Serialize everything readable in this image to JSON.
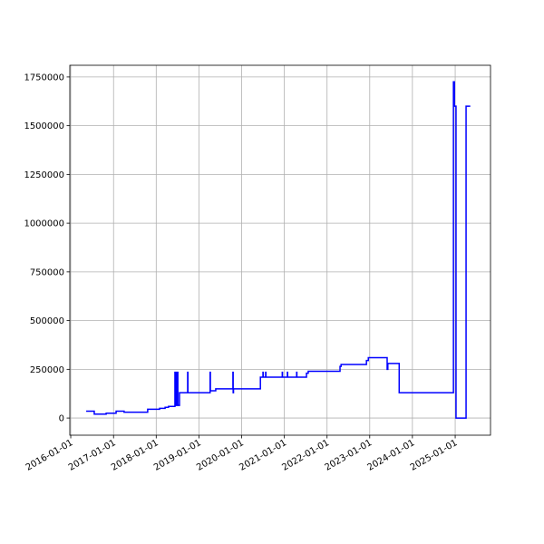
{
  "chart_data": {
    "type": "line",
    "color": "#0000ff",
    "grid": true,
    "x": [
      "2016-05-12",
      "2016-07-20",
      "2016-07-20",
      "2016-10-30",
      "2016-10-30",
      "2017-01-23",
      "2017-01-23",
      "2017-04-01",
      "2017-04-01",
      "2017-10-20",
      "2017-10-20",
      "2018-01-30",
      "2018-01-30",
      "2018-03-18",
      "2018-03-18",
      "2018-04-16",
      "2018-04-16",
      "2018-06-10",
      "2018-06-10",
      "2018-06-14",
      "2018-06-14",
      "2018-06-20",
      "2018-06-20",
      "2018-06-24",
      "2018-06-24",
      "2018-07-01",
      "2018-07-01",
      "2018-07-05",
      "2018-07-05",
      "2018-07-19",
      "2018-07-19",
      "2018-09-27",
      "2018-09-27",
      "2018-09-29",
      "2018-09-29",
      "2019-04-07",
      "2019-04-07",
      "2019-04-09",
      "2019-04-09",
      "2019-05-25",
      "2019-05-25",
      "2019-10-19",
      "2019-10-19",
      "2019-10-21",
      "2019-10-21",
      "2019-10-24",
      "2019-10-24",
      "2020-06-10",
      "2020-06-10",
      "2020-07-02",
      "2020-07-02",
      "2020-07-04",
      "2020-07-04",
      "2020-07-25",
      "2020-07-25",
      "2020-07-27",
      "2020-07-27",
      "2020-12-14",
      "2020-12-14",
      "2020-12-16",
      "2020-12-16",
      "2021-01-27",
      "2021-01-27",
      "2021-01-29",
      "2021-01-29",
      "2021-04-16",
      "2021-04-16",
      "2021-04-18",
      "2021-04-18",
      "2021-07-09",
      "2021-07-09",
      "2021-07-24",
      "2021-07-24",
      "2022-04-22",
      "2022-04-22",
      "2022-05-01",
      "2022-05-01",
      "2022-12-04",
      "2022-12-04",
      "2022-12-20",
      "2022-12-20",
      "2023-05-30",
      "2023-05-30",
      "2023-06-05",
      "2023-06-05",
      "2023-09-10",
      "2023-09-10",
      "2024-12-17",
      "2024-12-17",
      "2024-12-25",
      "2024-12-25",
      "2025-01-08",
      "2025-01-08",
      "2025-04-04",
      "2025-04-04",
      "2025-05-10"
    ],
    "values": [
      35000,
      35000,
      20000,
      20000,
      25000,
      25000,
      35000,
      35000,
      30000,
      30000,
      45000,
      45000,
      50000,
      50000,
      55000,
      55000,
      60000,
      60000,
      235000,
      235000,
      65000,
      65000,
      235000,
      235000,
      65000,
      65000,
      235000,
      235000,
      65000,
      65000,
      130000,
      130000,
      235000,
      235000,
      130000,
      130000,
      235000,
      235000,
      140000,
      140000,
      150000,
      150000,
      235000,
      235000,
      130000,
      130000,
      150000,
      150000,
      210000,
      210000,
      235000,
      235000,
      210000,
      210000,
      235000,
      235000,
      210000,
      210000,
      235000,
      235000,
      210000,
      210000,
      235000,
      235000,
      210000,
      210000,
      235000,
      235000,
      210000,
      210000,
      230000,
      230000,
      240000,
      240000,
      265000,
      265000,
      275000,
      275000,
      295000,
      295000,
      310000,
      310000,
      250000,
      250000,
      280000,
      280000,
      130000,
      130000,
      1725000,
      1725000,
      1600000,
      1600000,
      0,
      0,
      1600000,
      1600000
    ],
    "xlim": [
      "2015-12-24",
      "2025-10-30"
    ],
    "xticks": [
      "2016-01-01",
      "2017-01-01",
      "2018-01-01",
      "2019-01-01",
      "2020-01-01",
      "2021-01-01",
      "2022-01-01",
      "2023-01-01",
      "2024-01-01",
      "2025-01-01"
    ],
    "ylim": [
      -88000,
      1810000
    ],
    "yticks": [
      0,
      250000,
      500000,
      750000,
      1000000,
      1250000,
      1500000,
      1750000
    ]
  }
}
